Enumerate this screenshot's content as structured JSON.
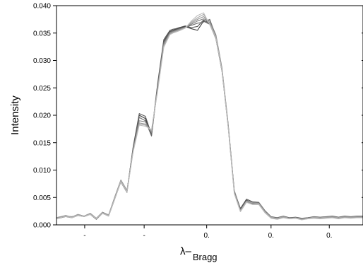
{
  "chart_data": {
    "type": "line",
    "title": "",
    "ylabel": "Intensity",
    "xlabel_main": "λ–",
    "xlabel_sub": "Bragg",
    "ylim": [
      0,
      0.04
    ],
    "xlim": [
      0,
      1
    ],
    "y_ticks": [
      "0.000",
      "0.005",
      "0.010",
      "0.015",
      "0.020",
      "0.025",
      "0.030",
      "0.035",
      "0.040"
    ],
    "x_ticks": [
      {
        "x": 0.092,
        "label": "-"
      },
      {
        "x": 0.286,
        "label": "-"
      },
      {
        "x": 0.49,
        "label": "0."
      },
      {
        "x": 0.7,
        "label": "0."
      },
      {
        "x": 0.89,
        "label": "0."
      }
    ],
    "grid": false,
    "legend": "none",
    "series_colors": [
      "#3a3a3a",
      "#555555",
      "#6a6a6a",
      "#808080",
      "#969696",
      "#a8a8a8",
      "#bdbdbd"
    ],
    "series": [
      {
        "x": [
          0,
          0.03,
          0.05,
          0.07,
          0.09,
          0.11,
          0.13,
          0.15,
          0.17,
          0.19,
          0.21,
          0.23,
          0.25,
          0.27,
          0.29,
          0.31,
          0.33,
          0.35,
          0.37,
          0.38,
          0.39,
          0.4,
          0.42,
          0.44,
          0.46,
          0.48,
          0.5,
          0.52,
          0.54,
          0.56,
          0.58,
          0.6,
          0.62,
          0.64,
          0.66,
          0.68,
          0.7,
          0.72,
          0.74,
          0.76,
          0.78,
          0.8,
          0.82,
          0.84,
          0.86,
          0.88,
          0.9,
          0.92,
          0.94,
          0.96,
          0.98,
          1.0
        ],
        "y": [
          0.0012,
          0.0016,
          0.0014,
          0.0018,
          0.0015,
          0.002,
          0.0011,
          0.0022,
          0.0017,
          0.0048,
          0.008,
          0.0062,
          0.014,
          0.02,
          0.0194,
          0.0163,
          0.0255,
          0.0335,
          0.0353,
          0.0355,
          0.0357,
          0.0359,
          0.0362,
          0.0358,
          0.0355,
          0.0372,
          0.0366,
          0.034,
          0.028,
          0.018,
          0.006,
          0.0028,
          0.0045,
          0.004,
          0.004,
          0.0025,
          0.0014,
          0.0012,
          0.0015,
          0.0012,
          0.0013,
          0.0011,
          0.0012,
          0.0014,
          0.0013,
          0.0014,
          0.0015,
          0.0013,
          0.0015,
          0.0014,
          0.0015,
          0.0015
        ]
      },
      {
        "x": [
          0,
          0.03,
          0.05,
          0.07,
          0.09,
          0.11,
          0.13,
          0.15,
          0.17,
          0.19,
          0.21,
          0.23,
          0.25,
          0.27,
          0.29,
          0.31,
          0.33,
          0.35,
          0.37,
          0.38,
          0.39,
          0.4,
          0.42,
          0.44,
          0.46,
          0.48,
          0.5,
          0.52,
          0.54,
          0.56,
          0.58,
          0.6,
          0.62,
          0.64,
          0.66,
          0.68,
          0.7,
          0.72,
          0.74,
          0.76,
          0.78,
          0.8,
          0.82,
          0.84,
          0.86,
          0.88,
          0.9,
          0.92,
          0.94,
          0.96,
          0.98,
          1.0
        ],
        "y": [
          0.0013,
          0.0017,
          0.0014,
          0.0019,
          0.0016,
          0.0021,
          0.0012,
          0.0023,
          0.0018,
          0.005,
          0.0081,
          0.006,
          0.0142,
          0.0203,
          0.0198,
          0.0165,
          0.0258,
          0.0338,
          0.0355,
          0.0357,
          0.0358,
          0.036,
          0.0363,
          0.036,
          0.0362,
          0.0374,
          0.0368,
          0.0342,
          0.0282,
          0.0182,
          0.0062,
          0.003,
          0.0047,
          0.0042,
          0.0041,
          0.0026,
          0.0015,
          0.0013,
          0.0016,
          0.0013,
          0.0014,
          0.0012,
          0.0013,
          0.0015,
          0.0014,
          0.0015,
          0.0016,
          0.0014,
          0.0016,
          0.0015,
          0.0016,
          0.0016
        ]
      },
      {
        "x": [
          0,
          0.03,
          0.05,
          0.07,
          0.09,
          0.11,
          0.13,
          0.15,
          0.17,
          0.19,
          0.21,
          0.23,
          0.25,
          0.27,
          0.29,
          0.31,
          0.33,
          0.35,
          0.37,
          0.38,
          0.39,
          0.4,
          0.42,
          0.44,
          0.46,
          0.48,
          0.5,
          0.52,
          0.54,
          0.56,
          0.58,
          0.6,
          0.62,
          0.64,
          0.66,
          0.68,
          0.7,
          0.72,
          0.74,
          0.76,
          0.78,
          0.8,
          0.82,
          0.84,
          0.86,
          0.88,
          0.9,
          0.92,
          0.94,
          0.96,
          0.98,
          1.0
        ],
        "y": [
          0.0011,
          0.0015,
          0.0013,
          0.0017,
          0.0015,
          0.0019,
          0.001,
          0.0021,
          0.0016,
          0.0047,
          0.0079,
          0.0061,
          0.0138,
          0.0196,
          0.019,
          0.0162,
          0.0253,
          0.0333,
          0.0352,
          0.0354,
          0.0356,
          0.0358,
          0.0361,
          0.0364,
          0.0368,
          0.037,
          0.0375,
          0.0345,
          0.0284,
          0.0183,
          0.0061,
          0.0026,
          0.0043,
          0.0039,
          0.0039,
          0.0024,
          0.0013,
          0.0011,
          0.0014,
          0.0012,
          0.0013,
          0.001,
          0.0012,
          0.0013,
          0.0012,
          0.0013,
          0.0014,
          0.0012,
          0.0014,
          0.0013,
          0.0014,
          0.0014
        ]
      },
      {
        "x": [
          0,
          0.03,
          0.05,
          0.07,
          0.09,
          0.11,
          0.13,
          0.15,
          0.17,
          0.19,
          0.21,
          0.23,
          0.25,
          0.27,
          0.29,
          0.31,
          0.33,
          0.35,
          0.37,
          0.38,
          0.39,
          0.4,
          0.42,
          0.44,
          0.46,
          0.48,
          0.5,
          0.52,
          0.54,
          0.56,
          0.58,
          0.6,
          0.62,
          0.64,
          0.66,
          0.68,
          0.7,
          0.72,
          0.74,
          0.76,
          0.78,
          0.8,
          0.82,
          0.84,
          0.86,
          0.88,
          0.9,
          0.92,
          0.94,
          0.96,
          0.98,
          1.0
        ],
        "y": [
          0.0012,
          0.0016,
          0.0015,
          0.0018,
          0.0016,
          0.002,
          0.0012,
          0.0022,
          0.0017,
          0.0049,
          0.0078,
          0.0059,
          0.0137,
          0.019,
          0.0188,
          0.0168,
          0.025,
          0.033,
          0.035,
          0.0353,
          0.0355,
          0.0357,
          0.036,
          0.0366,
          0.0372,
          0.0376,
          0.0372,
          0.0347,
          0.0286,
          0.0185,
          0.0063,
          0.0027,
          0.0044,
          0.0041,
          0.004,
          0.0025,
          0.0014,
          0.0012,
          0.0015,
          0.0012,
          0.0013,
          0.0011,
          0.0012,
          0.0014,
          0.0013,
          0.0014,
          0.0015,
          0.0013,
          0.0015,
          0.0014,
          0.0015,
          0.0015
        ]
      },
      {
        "x": [
          0,
          0.03,
          0.05,
          0.07,
          0.09,
          0.11,
          0.13,
          0.15,
          0.17,
          0.19,
          0.21,
          0.23,
          0.25,
          0.27,
          0.29,
          0.31,
          0.33,
          0.35,
          0.37,
          0.38,
          0.39,
          0.4,
          0.42,
          0.44,
          0.46,
          0.48,
          0.5,
          0.52,
          0.54,
          0.56,
          0.58,
          0.6,
          0.62,
          0.64,
          0.66,
          0.68,
          0.7,
          0.72,
          0.74,
          0.76,
          0.78,
          0.8,
          0.82,
          0.84,
          0.86,
          0.88,
          0.9,
          0.92,
          0.94,
          0.96,
          0.98,
          1.0
        ],
        "y": [
          0.0013,
          0.0017,
          0.0014,
          0.0019,
          0.0015,
          0.0021,
          0.0011,
          0.0023,
          0.0018,
          0.0051,
          0.0082,
          0.0063,
          0.0135,
          0.0186,
          0.0184,
          0.017,
          0.0248,
          0.0328,
          0.0349,
          0.0352,
          0.0354,
          0.0356,
          0.036,
          0.0368,
          0.0375,
          0.038,
          0.0369,
          0.0344,
          0.0283,
          0.0181,
          0.0059,
          0.0025,
          0.0042,
          0.0038,
          0.0038,
          0.0023,
          0.0013,
          0.0011,
          0.0014,
          0.0011,
          0.0012,
          0.001,
          0.0011,
          0.0013,
          0.0012,
          0.0013,
          0.0014,
          0.0012,
          0.0014,
          0.0013,
          0.0014,
          0.0014
        ]
      },
      {
        "x": [
          0,
          0.03,
          0.05,
          0.07,
          0.09,
          0.11,
          0.13,
          0.15,
          0.17,
          0.19,
          0.21,
          0.23,
          0.25,
          0.27,
          0.29,
          0.31,
          0.33,
          0.35,
          0.37,
          0.38,
          0.39,
          0.4,
          0.42,
          0.44,
          0.46,
          0.48,
          0.5,
          0.52,
          0.54,
          0.56,
          0.58,
          0.6,
          0.62,
          0.64,
          0.66,
          0.68,
          0.7,
          0.72,
          0.74,
          0.76,
          0.78,
          0.8,
          0.82,
          0.84,
          0.86,
          0.88,
          0.9,
          0.92,
          0.94,
          0.96,
          0.98,
          1.0
        ],
        "y": [
          0.0012,
          0.0015,
          0.0014,
          0.0018,
          0.0016,
          0.002,
          0.0012,
          0.0022,
          0.0017,
          0.0048,
          0.008,
          0.0061,
          0.0134,
          0.0184,
          0.0182,
          0.0172,
          0.0246,
          0.0326,
          0.0348,
          0.0351,
          0.0353,
          0.0355,
          0.036,
          0.037,
          0.0378,
          0.0384,
          0.0367,
          0.0343,
          0.0282,
          0.018,
          0.0058,
          0.0026,
          0.0043,
          0.004,
          0.0039,
          0.0024,
          0.0014,
          0.0012,
          0.0015,
          0.0012,
          0.0013,
          0.0011,
          0.0012,
          0.0014,
          0.0013,
          0.0014,
          0.0015,
          0.0013,
          0.0015,
          0.0014,
          0.0015,
          0.0015
        ]
      },
      {
        "x": [
          0,
          0.03,
          0.05,
          0.07,
          0.09,
          0.11,
          0.13,
          0.15,
          0.17,
          0.19,
          0.21,
          0.23,
          0.25,
          0.27,
          0.29,
          0.31,
          0.33,
          0.35,
          0.37,
          0.38,
          0.39,
          0.4,
          0.42,
          0.44,
          0.46,
          0.48,
          0.5,
          0.52,
          0.54,
          0.56,
          0.58,
          0.6,
          0.62,
          0.64,
          0.66,
          0.68,
          0.7,
          0.72,
          0.74,
          0.76,
          0.78,
          0.8,
          0.82,
          0.84,
          0.86,
          0.88,
          0.9,
          0.92,
          0.94,
          0.96,
          0.98,
          1.0
        ],
        "y": [
          0.0011,
          0.0016,
          0.0013,
          0.0017,
          0.0015,
          0.0019,
          0.0011,
          0.0021,
          0.0016,
          0.0047,
          0.0079,
          0.006,
          0.0133,
          0.0182,
          0.018,
          0.0174,
          0.0244,
          0.0324,
          0.0347,
          0.035,
          0.0352,
          0.0354,
          0.0359,
          0.0372,
          0.0382,
          0.0387,
          0.0365,
          0.0341,
          0.0281,
          0.0179,
          0.0057,
          0.0024,
          0.0041,
          0.0037,
          0.0037,
          0.0022,
          0.0012,
          0.001,
          0.0013,
          0.0011,
          0.0012,
          0.0009,
          0.0011,
          0.0012,
          0.0011,
          0.0012,
          0.0013,
          0.0011,
          0.0013,
          0.0012,
          0.0013,
          0.0013
        ]
      }
    ]
  }
}
